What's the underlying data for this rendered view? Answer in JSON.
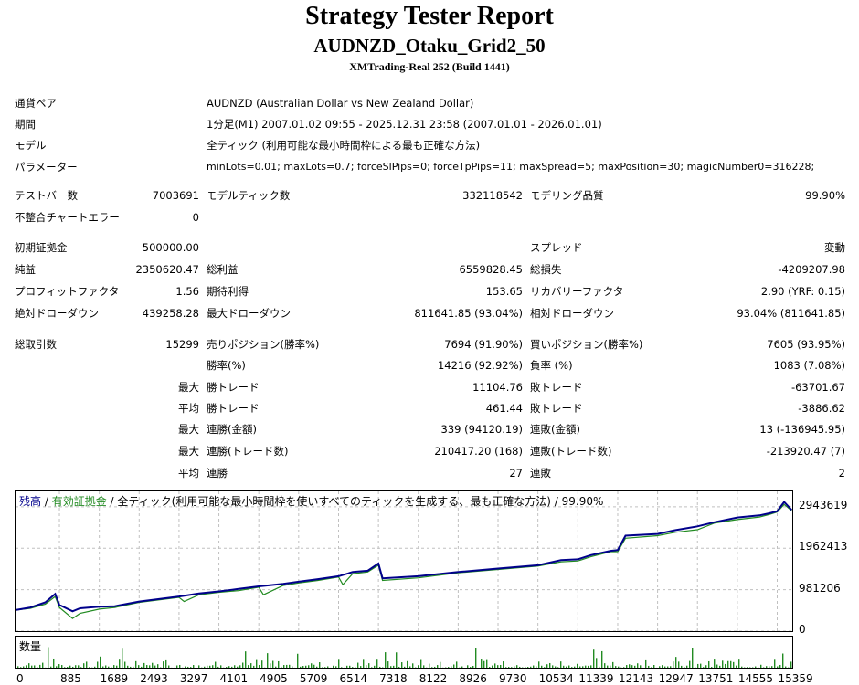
{
  "header": {
    "title": "Strategy Tester Report",
    "ea": "AUDNZD_Otaku_Grid2_50",
    "server": "XMTrading-Real 252 (Build 1441)"
  },
  "info": [
    {
      "label": "通貨ペア",
      "value": "AUDNZD (Australian Dollar vs New Zealand Dollar)"
    },
    {
      "label": "期間",
      "value": "1分足(M1) 2007.01.02 09:55 - 2025.12.31 23:58 (2007.01.01 - 2026.01.01)"
    },
    {
      "label": "モデル",
      "value": "全ティック (利用可能な最小時間枠による最も正確な方法)"
    },
    {
      "label": "パラメーター",
      "value": "minLots=0.01; maxLots=0.7; forceSlPips=0; forceTpPips=11; maxSpread=5; maxPosition=30; magicNumber0=316228;"
    }
  ],
  "stats": {
    "test_bars_label": "テストバー数",
    "test_bars": "7003691",
    "model_ticks_label": "モデルティック数",
    "model_ticks": "332118542",
    "modeling_quality_label": "モデリング品質",
    "modeling_quality": "99.90%",
    "mismatch_label": "不整合チャートエラー",
    "mismatch": "0",
    "initial_deposit_label": "初期証拠金",
    "initial_deposit": "500000.00",
    "spread_label": "スプレッド",
    "spread": "変動",
    "net_profit_label": "純益",
    "net_profit": "2350620.47",
    "gross_profit_label": "総利益",
    "gross_profit": "6559828.45",
    "gross_loss_label": "総損失",
    "gross_loss": "-4209207.98",
    "profit_factor_label": "プロフィットファクタ",
    "profit_factor": "1.56",
    "expected_payoff_label": "期待利得",
    "expected_payoff": "153.65",
    "recovery_factor_label": "リカバリーファクタ",
    "recovery_factor": "2.90 (YRF: 0.15)",
    "abs_dd_label": "絶対ドローダウン",
    "abs_dd": "439258.28",
    "max_dd_label": "最大ドローダウン",
    "max_dd": "811641.85 (93.04%)",
    "rel_dd_label": "相対ドローダウン",
    "rel_dd": "93.04% (811641.85)",
    "total_trades_label": "総取引数",
    "total_trades": "15299",
    "short_label": "売りポジション(勝率%)",
    "short": "7694 (91.90%)",
    "long_label": "買いポジション(勝率%)",
    "long": "7605 (93.95%)",
    "win_rate_label": "勝率(%)",
    "win_rate": "14216 (92.92%)",
    "loss_rate_label": "負率 (%)",
    "loss_rate": "1083 (7.08%)",
    "max_label": "最大",
    "avg_label": "平均",
    "max_win_label": "勝トレード",
    "max_win": "11104.76",
    "max_loss_label": "敗トレード",
    "max_loss": "-63701.67",
    "avg_win_label": "勝トレード",
    "avg_win": "461.44",
    "avg_loss_label": "敗トレード",
    "avg_loss": "-3886.62",
    "max_consec_wins_label": "連勝(金額)",
    "max_consec_wins": "339 (94120.19)",
    "max_consec_losses_label": "連敗(金額)",
    "max_consec_losses": "13 (-136945.95)",
    "max_consec_profit_label": "連勝(トレード数)",
    "max_consec_profit": "210417.20 (168)",
    "max_consec_loss_label": "連敗(トレード数)",
    "max_consec_loss": "-213920.47 (7)",
    "avg_consec_wins_label": "連勝",
    "avg_consec_wins": "27",
    "avg_consec_losses_label": "連敗",
    "avg_consec_losses": "2"
  },
  "legend": {
    "balance": "残高",
    "sep1": " / ",
    "equity": "有効証拠金",
    "rest": " / 全ティック(利用可能な最小時間枠を使いすべてのティックを生成する、最も正確な方法) / 99.90%"
  },
  "volume_label": "数量",
  "colors": {
    "balance": "#00008b",
    "equity": "#228b22",
    "grid": "#c0c0c0"
  },
  "chart_data": {
    "type": "line",
    "ylim": [
      0,
      3200000
    ],
    "xlim": [
      0,
      15700
    ],
    "y_ticks": [
      0,
      981206,
      1962413,
      2943619
    ],
    "x_ticks": [
      0,
      885,
      1689,
      2493,
      3297,
      4101,
      4905,
      5709,
      6514,
      7318,
      8122,
      8926,
      9730,
      10534,
      11339,
      12143,
      12947,
      13751,
      14555,
      15359
    ],
    "series": [
      {
        "name": "残高",
        "x": [
          0,
          300,
          600,
          800,
          885,
          1150,
          1300,
          1689,
          2000,
          2493,
          3297,
          3700,
          4101,
          4500,
          4905,
          5400,
          5709,
          6100,
          6514,
          6800,
          7100,
          7318,
          7400,
          8122,
          8926,
          9730,
          10534,
          11000,
          11339,
          11600,
          12000,
          12143,
          12300,
          12947,
          13300,
          13751,
          14100,
          14555,
          15000,
          15200,
          15359,
          15500,
          15650
        ],
        "y": [
          500000,
          560000,
          680000,
          880000,
          620000,
          470000,
          540000,
          580000,
          590000,
          700000,
          820000,
          890000,
          940000,
          1000000,
          1060000,
          1120000,
          1170000,
          1230000,
          1300000,
          1400000,
          1430000,
          1600000,
          1250000,
          1300000,
          1400000,
          1480000,
          1560000,
          1680000,
          1700000,
          1800000,
          1900000,
          1920000,
          2260000,
          2300000,
          2390000,
          2480000,
          2580000,
          2690000,
          2740000,
          2790000,
          2840000,
          3060000,
          2870000
        ]
      },
      {
        "name": "有効証拠金",
        "x": [
          0,
          300,
          600,
          800,
          885,
          1150,
          1300,
          1689,
          2000,
          2493,
          3297,
          3400,
          3700,
          4101,
          4500,
          4905,
          5000,
          5400,
          5709,
          6100,
          6514,
          6600,
          6800,
          7100,
          7318,
          7400,
          8122,
          8926,
          9730,
          10534,
          11000,
          11339,
          11600,
          12000,
          12143,
          12300,
          12947,
          13300,
          13751,
          14100,
          14555,
          15000,
          15200,
          15359,
          15500,
          15650
        ],
        "y": [
          500000,
          540000,
          640000,
          820000,
          560000,
          300000,
          420000,
          520000,
          560000,
          680000,
          800000,
          700000,
          860000,
          920000,
          960000,
          1040000,
          860000,
          1080000,
          1140000,
          1200000,
          1280000,
          1100000,
          1360000,
          1400000,
          1560000,
          1200000,
          1260000,
          1380000,
          1460000,
          1540000,
          1640000,
          1660000,
          1760000,
          1880000,
          1880000,
          2200000,
          2260000,
          2340000,
          2400000,
          2560000,
          2640000,
          2700000,
          2760000,
          2820000,
          3000000,
          2850000
        ]
      }
    ]
  }
}
